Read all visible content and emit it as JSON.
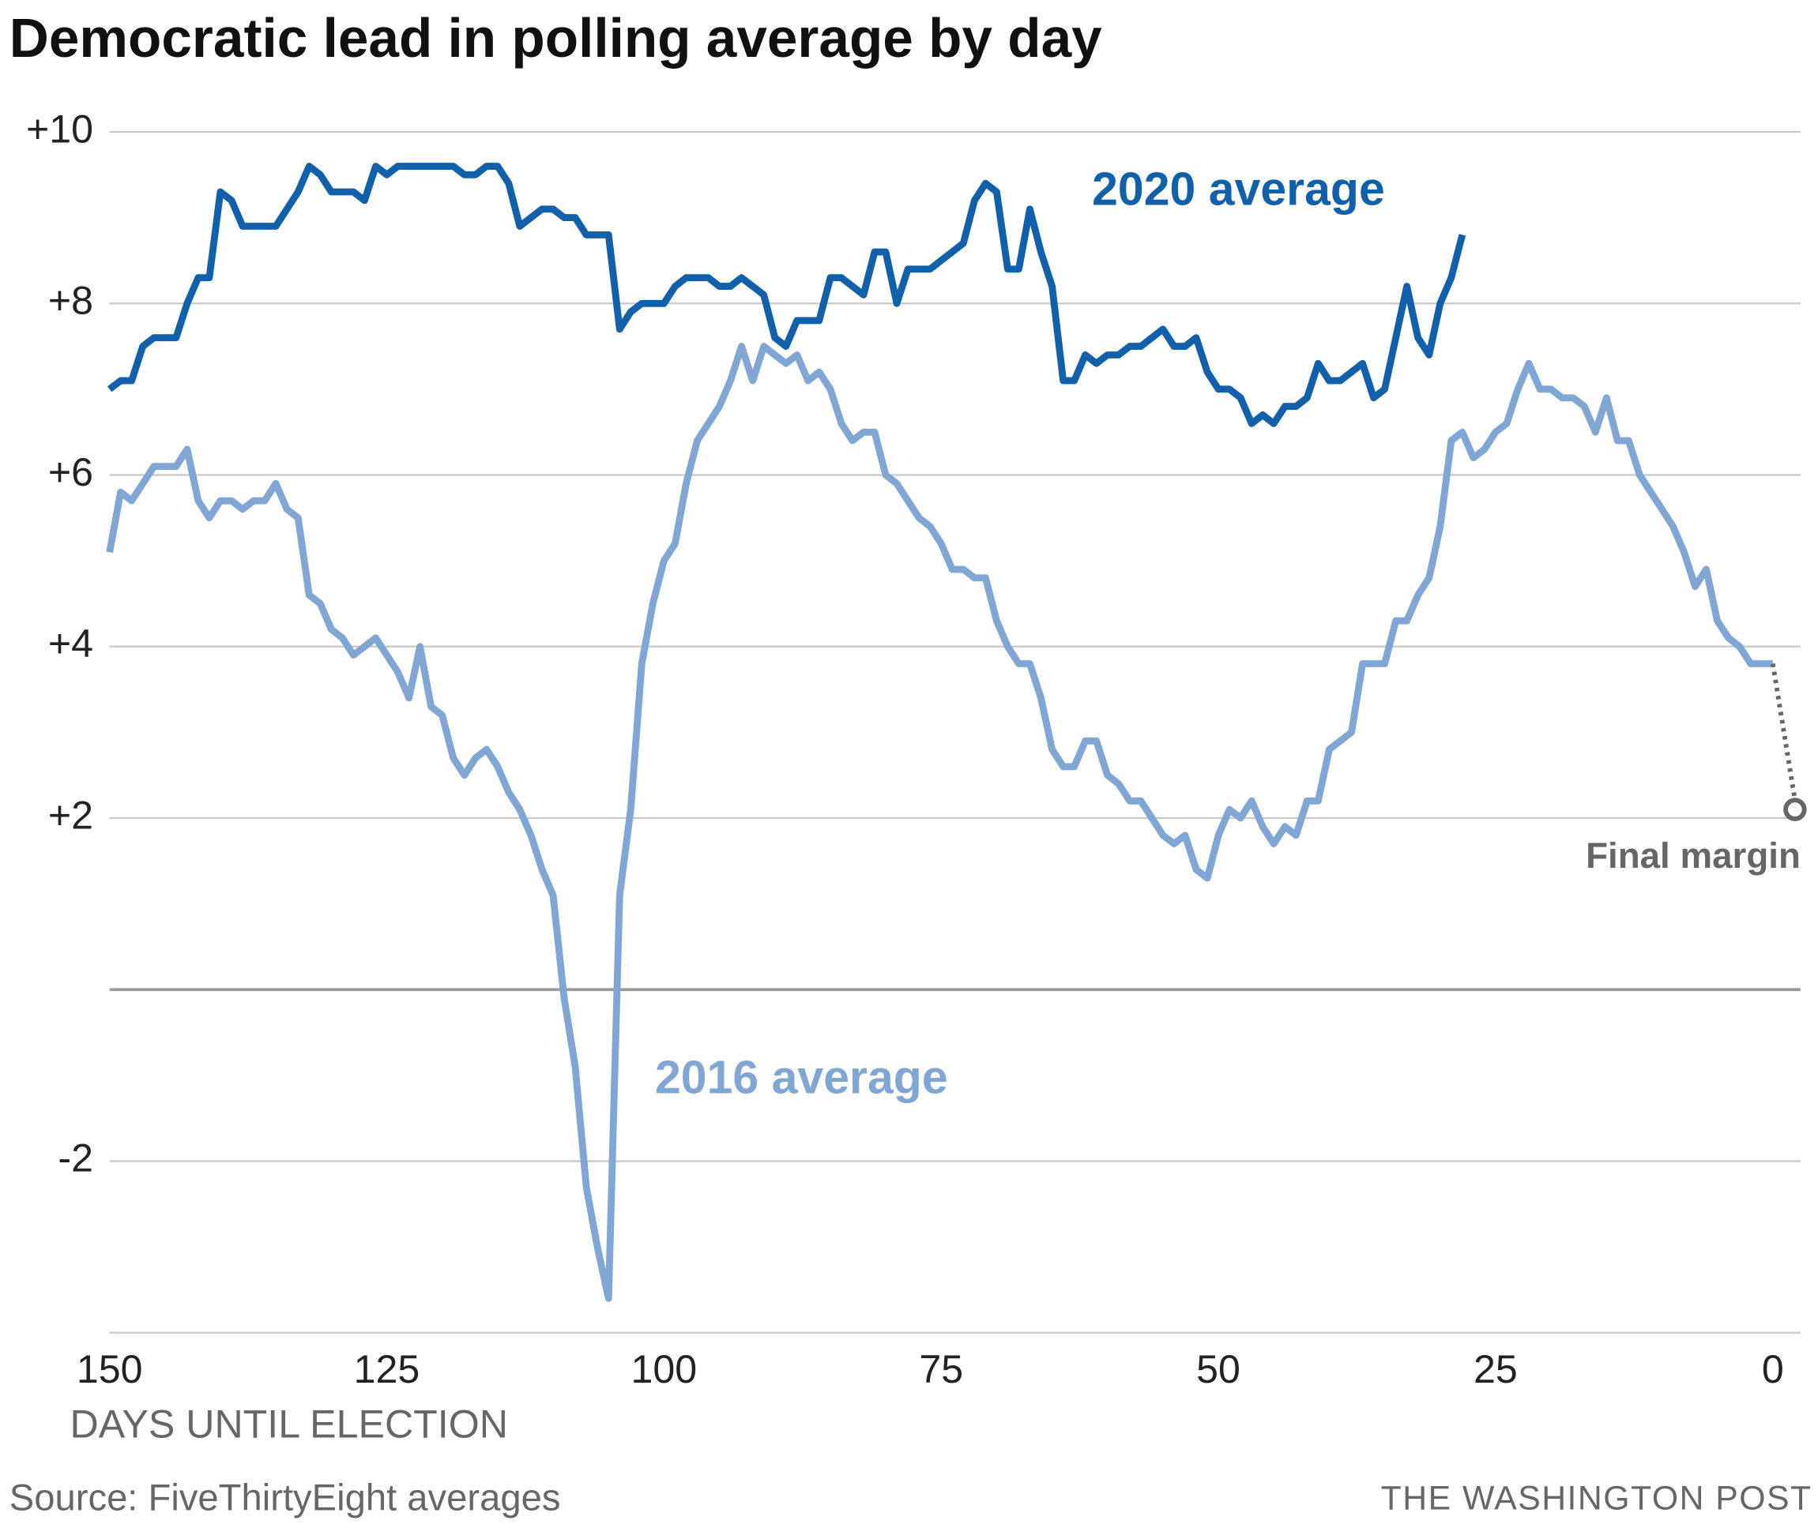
{
  "chart_data": {
    "type": "line",
    "title": "Democratic lead in polling average by day",
    "xlabel": "DAYS UNTIL ELECTION",
    "source": "Source: FiveThirtyEight averages",
    "credit": "THE WASHINGTON POST",
    "xlim": [
      150,
      -2.5
    ],
    "ylim": [
      -4,
      10
    ],
    "xticks": [
      150,
      125,
      100,
      75,
      50,
      25,
      0
    ],
    "yticks": [
      {
        "value": 10,
        "label": "+10"
      },
      {
        "value": 8,
        "label": "+8"
      },
      {
        "value": 6,
        "label": "+6"
      },
      {
        "value": 4,
        "label": "+4"
      },
      {
        "value": 2,
        "label": "+2"
      },
      -2
    ],
    "baseline": 0,
    "grid": true,
    "series": [
      {
        "name": "2020 average",
        "color": "#1160ab",
        "x": [
          150,
          149,
          148,
          147,
          146,
          144,
          143,
          142,
          141,
          140,
          139,
          138,
          135,
          133,
          132,
          131,
          130,
          128,
          127,
          126,
          125,
          124,
          119,
          118,
          117,
          116,
          115,
          114,
          113,
          111,
          110,
          109,
          108,
          107,
          105,
          104,
          103,
          102,
          100,
          99,
          98,
          96,
          95,
          94,
          93,
          91,
          90,
          89,
          88,
          86,
          85,
          84,
          82,
          81,
          80,
          79,
          78,
          76,
          73,
          72,
          71,
          70,
          69,
          68,
          67,
          66,
          65,
          64,
          63,
          62,
          61,
          60,
          59,
          58,
          57,
          55,
          54,
          53,
          52,
          51,
          50,
          49,
          48,
          47,
          46,
          45,
          44,
          43,
          42,
          41,
          40,
          39,
          37,
          36,
          35,
          33,
          32,
          31,
          30,
          29,
          28
        ],
        "values": [
          7.0,
          7.1,
          7.1,
          7.5,
          7.6,
          7.6,
          8.0,
          8.3,
          8.3,
          9.3,
          9.2,
          8.9,
          8.9,
          9.3,
          9.6,
          9.5,
          9.3,
          9.3,
          9.2,
          9.6,
          9.5,
          9.6,
          9.6,
          9.5,
          9.5,
          9.6,
          9.6,
          9.4,
          8.9,
          9.1,
          9.1,
          9.0,
          9.0,
          8.8,
          8.8,
          7.7,
          7.9,
          8.0,
          8.0,
          8.2,
          8.3,
          8.3,
          8.2,
          8.2,
          8.3,
          8.1,
          7.6,
          7.5,
          7.8,
          7.8,
          8.3,
          8.3,
          8.1,
          8.6,
          8.6,
          8.0,
          8.4,
          8.4,
          8.7,
          9.2,
          9.4,
          9.3,
          8.4,
          8.4,
          9.1,
          8.6,
          8.2,
          7.1,
          7.1,
          7.4,
          7.3,
          7.4,
          7.4,
          7.5,
          7.5,
          7.7,
          7.5,
          7.5,
          7.6,
          7.2,
          7.0,
          7.0,
          6.9,
          6.6,
          6.7,
          6.6,
          6.8,
          6.8,
          6.9,
          7.3,
          7.1,
          7.1,
          7.3,
          6.9,
          7.0,
          8.2,
          7.6,
          7.4,
          8.0,
          8.3,
          8.8
        ]
      },
      {
        "name": "2016 average",
        "color": "#80a6d6",
        "x": [
          150,
          149,
          148,
          146,
          144,
          143,
          142,
          141,
          140,
          139,
          138,
          137,
          136,
          135,
          134,
          133,
          132,
          131,
          130,
          129,
          128,
          126,
          124,
          123,
          122,
          121,
          120,
          119,
          118,
          117,
          116,
          115,
          114,
          113,
          112,
          111,
          110,
          109,
          108,
          107,
          106,
          105,
          104,
          103,
          102,
          101,
          100,
          99,
          98,
          97,
          95,
          94,
          93,
          92,
          91,
          90,
          89,
          88,
          87,
          86,
          85,
          84,
          83,
          82,
          81,
          80,
          79,
          77,
          76,
          75,
          74,
          73,
          72,
          71,
          70,
          69,
          68,
          67,
          66,
          65,
          64,
          63,
          62,
          61,
          60,
          59,
          58,
          57,
          56,
          55,
          54,
          53,
          52,
          51,
          50,
          49,
          48,
          47,
          46,
          45,
          44,
          43,
          42,
          41,
          40,
          38,
          37,
          35,
          34,
          33,
          32,
          31,
          30,
          29,
          28,
          27,
          26,
          25,
          24,
          23,
          22,
          21,
          20,
          19,
          18,
          17,
          16,
          15,
          14,
          13,
          12,
          10,
          9,
          8,
          7,
          6,
          5,
          4,
          3,
          2,
          0
        ],
        "values": [
          5.1,
          5.8,
          5.7,
          6.1,
          6.1,
          6.3,
          5.7,
          5.5,
          5.7,
          5.7,
          5.6,
          5.7,
          5.7,
          5.9,
          5.6,
          5.5,
          4.6,
          4.5,
          4.2,
          4.1,
          3.9,
          4.1,
          3.7,
          3.4,
          4.0,
          3.3,
          3.2,
          2.7,
          2.5,
          2.7,
          2.8,
          2.6,
          2.3,
          2.1,
          1.8,
          1.4,
          1.1,
          -0.1,
          -0.9,
          -2.3,
          -3.0,
          -3.6,
          1.1,
          2.1,
          3.8,
          4.5,
          5.0,
          5.2,
          5.9,
          6.4,
          6.8,
          7.1,
          7.5,
          7.1,
          7.5,
          7.4,
          7.3,
          7.4,
          7.1,
          7.2,
          7.0,
          6.6,
          6.4,
          6.5,
          6.5,
          6.0,
          5.9,
          5.5,
          5.4,
          5.2,
          4.9,
          4.9,
          4.8,
          4.8,
          4.3,
          4.0,
          3.8,
          3.8,
          3.4,
          2.8,
          2.6,
          2.6,
          2.9,
          2.9,
          2.5,
          2.4,
          2.2,
          2.2,
          2.0,
          1.8,
          1.7,
          1.8,
          1.4,
          1.3,
          1.8,
          2.1,
          2.0,
          2.2,
          1.9,
          1.7,
          1.9,
          1.8,
          2.2,
          2.2,
          2.8,
          3.0,
          3.8,
          3.8,
          4.3,
          4.3,
          4.6,
          4.8,
          5.4,
          6.4,
          6.5,
          6.2,
          6.3,
          6.5,
          6.6,
          7.0,
          7.3,
          7.0,
          7.0,
          6.9,
          6.9,
          6.8,
          6.5,
          6.9,
          6.4,
          6.4,
          6.0,
          5.6,
          5.4,
          5.1,
          4.7,
          4.9,
          4.3,
          4.1,
          4.0,
          3.8,
          3.8
        ]
      }
    ],
    "final_margin": {
      "label": "Final margin",
      "x": -2,
      "value": 2.1,
      "color": "#666666"
    }
  }
}
